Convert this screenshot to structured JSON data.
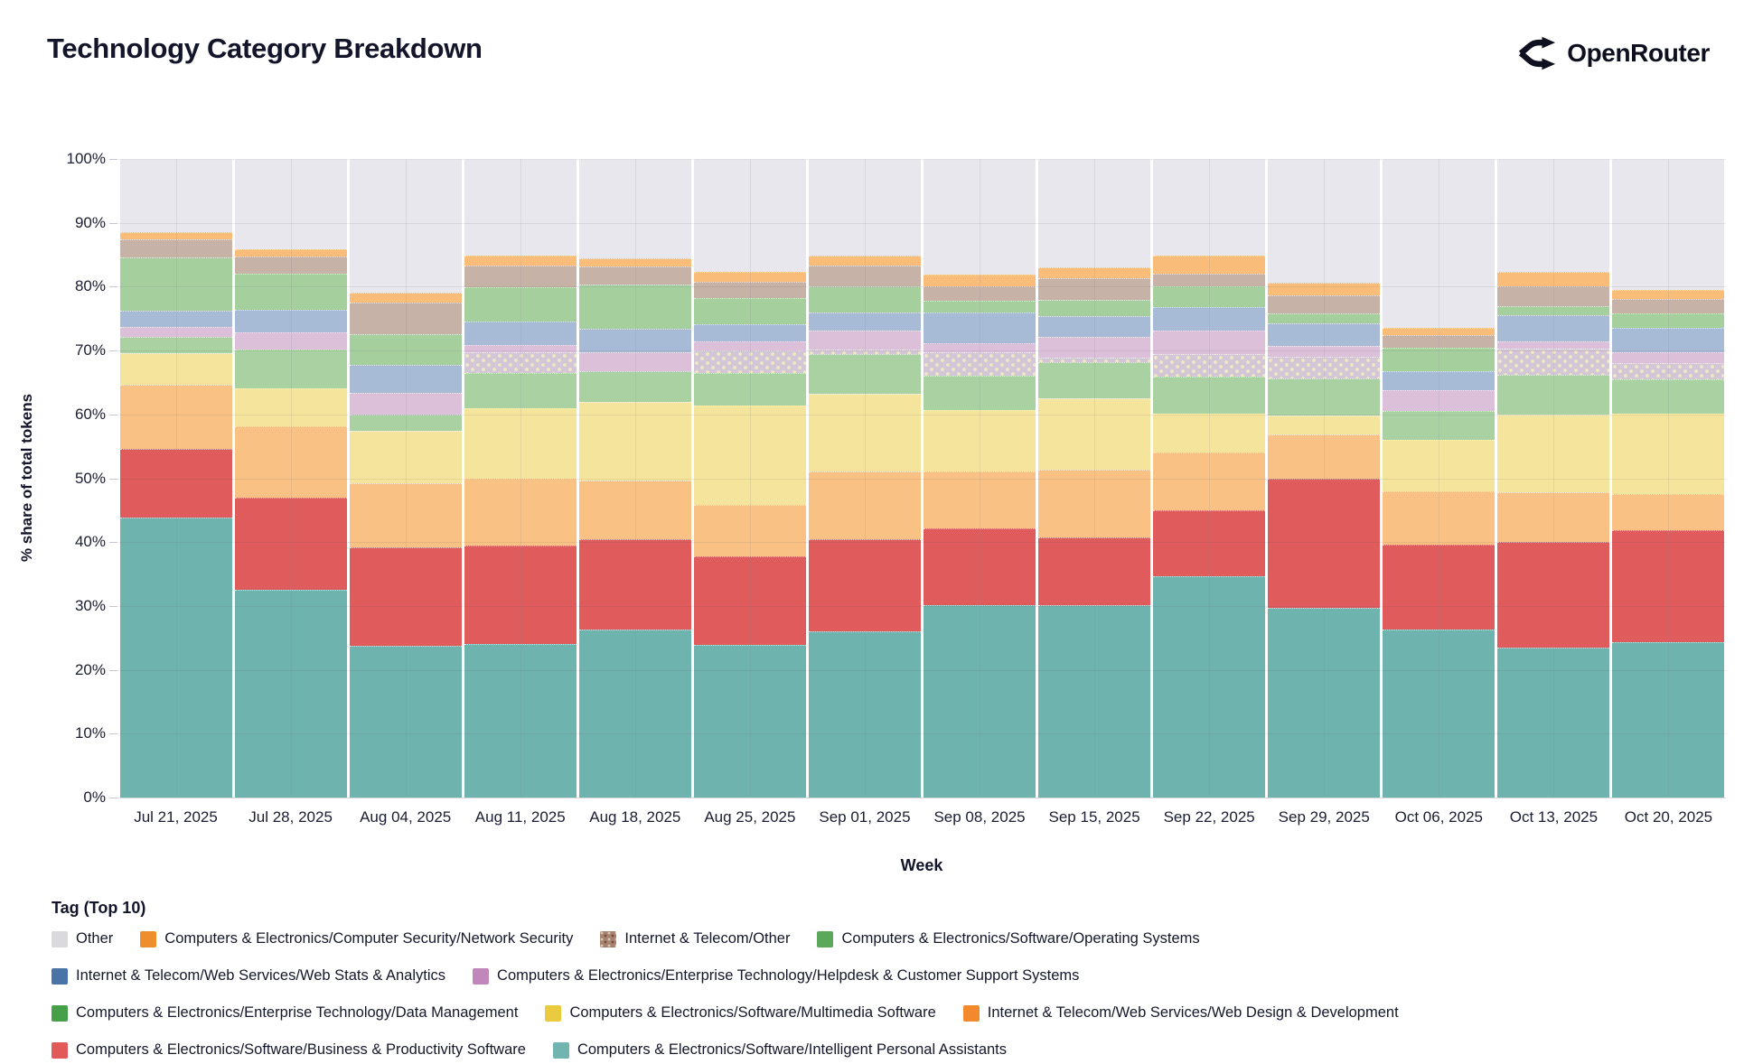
{
  "header": {
    "title": "Technology Category Breakdown",
    "brand": "OpenRouter"
  },
  "chart_data": {
    "type": "bar",
    "stacked": true,
    "title": "Technology Category Breakdown",
    "xlabel": "Week",
    "ylabel": "% share of total tokens",
    "ylim": [
      0,
      100
    ],
    "y_ticks": [
      "0%",
      "10%",
      "20%",
      "30%",
      "40%",
      "50%",
      "60%",
      "70%",
      "80%",
      "90%",
      "100%"
    ],
    "grid": true,
    "legend_title": "Tag (Top 10)",
    "categories": [
      "Jul 21, 2025",
      "Jul 28, 2025",
      "Aug 04, 2025",
      "Aug 11, 2025",
      "Aug 18, 2025",
      "Aug 25, 2025",
      "Sep 01, 2025",
      "Sep 08, 2025",
      "Sep 15, 2025",
      "Sep 22, 2025",
      "Sep 29, 2025",
      "Oct 06, 2025",
      "Oct 13, 2025",
      "Oct 20, 2025"
    ],
    "series": [
      {
        "name": "Computers & Electronics/Software/Intelligent Personal Assistants",
        "bar_color": "#6FB3AE",
        "legend_color": "#72B5B0",
        "values": [
          43.8,
          32.6,
          23.8,
          24.0,
          26.3,
          23.9,
          26.0,
          30.2,
          30.2,
          34.7,
          29.7,
          26.3,
          23.5,
          24.4
        ]
      },
      {
        "name": "Computers & Electronics/Software/Business & Productivity Software",
        "bar_color": "#E05C5C",
        "legend_color": "#E25959",
        "values": [
          10.8,
          14.4,
          15.4,
          15.5,
          14.2,
          13.8,
          14.5,
          12.0,
          10.5,
          10.3,
          20.3,
          13.3,
          16.5,
          17.4
        ]
      },
      {
        "name": "Internet & Telecom/Web Services/Web Design & Development",
        "bar_color": "#F9C183",
        "legend_color": "#F28A2D",
        "values": [
          10.0,
          11.1,
          10.0,
          10.5,
          9.2,
          8.1,
          10.5,
          8.8,
          10.7,
          9.0,
          6.8,
          8.4,
          7.8,
          5.7
        ]
      },
      {
        "name": "Computers & Electronics/Software/Multimedia Software",
        "bar_color": "#F5E49B",
        "legend_color": "#EACA3F",
        "values": [
          5.0,
          6.0,
          8.2,
          11.0,
          12.3,
          15.6,
          12.2,
          9.7,
          11.1,
          6.1,
          3.1,
          8.0,
          12.2,
          12.6
        ]
      },
      {
        "name": "Computers & Electronics/Enterprise Technology/Data Management",
        "bar_color": "#A9D1A1",
        "legend_color": "#46A049",
        "values": [
          2.6,
          6.1,
          2.6,
          5.5,
          4.8,
          5.1,
          6.3,
          5.4,
          5.7,
          5.8,
          5.7,
          4.5,
          6.2,
          5.4
        ]
      },
      {
        "name": "Computers & Electronics/Enterprise Technology/Helpdesk & Customer Support Systems",
        "note": "dotted-pattern portion of band, not a separate legend entry",
        "pattern": "dots",
        "in_legend": false,
        "bar_color": "#D3C7D7",
        "legend_color": "#C287BA",
        "values": [
          0,
          0,
          0,
          3.3,
          0,
          3.5,
          0.7,
          3.7,
          0.7,
          3.6,
          3.5,
          0,
          4.1,
          2.6
        ]
      },
      {
        "name": "Computers & Electronics/Enterprise Technology/Helpdesk & Customer Support Systems",
        "bar_color": "#DCC0DA",
        "legend_color": "#C287BA",
        "values": [
          1.5,
          2.7,
          3.4,
          1.1,
          3.0,
          1.5,
          2.9,
          1.3,
          3.2,
          3.7,
          1.6,
          3.3,
          1.2,
          1.6
        ]
      },
      {
        "name": "Internet & Telecom/Web Services/Web Stats & Analytics",
        "bar_color": "#A7BBD6",
        "legend_color": "#4A74A8",
        "values": [
          2.6,
          3.5,
          4.4,
          3.6,
          3.6,
          2.6,
          2.8,
          4.8,
          3.3,
          3.6,
          3.6,
          3.0,
          4.1,
          3.9
        ]
      },
      {
        "name": "Computers & Electronics/Software/Operating Systems",
        "bar_color": "#A6CF9E",
        "legend_color": "#5BA85A",
        "values": [
          8.3,
          5.7,
          4.8,
          5.4,
          7.0,
          4.1,
          4.2,
          1.9,
          2.5,
          3.2,
          1.5,
          3.6,
          1.4,
          2.2
        ]
      },
      {
        "name": "Internet & Telecom/Other",
        "bar_color": "#C6B2A6",
        "legend_color": "#A8826F",
        "legend_pattern": "dots",
        "values": [
          2.8,
          2.7,
          4.9,
          3.4,
          2.8,
          2.6,
          3.2,
          2.3,
          3.4,
          2.1,
          2.9,
          2.0,
          3.0,
          2.3
        ]
      },
      {
        "name": "Computers & Electronics/Computer Security/Network Security",
        "bar_color": "#F9BD79",
        "legend_color": "#EF8E2C",
        "values": [
          1.2,
          1.0,
          1.6,
          1.6,
          1.3,
          1.6,
          1.6,
          1.8,
          1.8,
          2.8,
          1.9,
          1.2,
          2.3,
          1.4
        ]
      },
      {
        "name": "Other",
        "bar_color": "#E7E7ED",
        "legend_color": "#D9D9DE",
        "values": [
          11.4,
          14.2,
          20.9,
          15.1,
          15.5,
          17.6,
          15.1,
          18.1,
          16.9,
          15.1,
          19.4,
          26.4,
          17.7,
          20.5
        ]
      }
    ],
    "legend_order": [
      "Other",
      "Computers & Electronics/Computer Security/Network Security",
      "Internet & Telecom/Other",
      "Computers & Electronics/Software/Operating Systems",
      "Internet & Telecom/Web Services/Web Stats & Analytics",
      "Computers & Electronics/Enterprise Technology/Helpdesk & Customer Support Systems",
      "Computers & Electronics/Enterprise Technology/Data Management",
      "Computers & Electronics/Software/Multimedia Software",
      "Internet & Telecom/Web Services/Web Design & Development",
      "Computers & Electronics/Software/Business & Productivity Software",
      "Computers & Electronics/Software/Intelligent Personal Assistants"
    ]
  }
}
